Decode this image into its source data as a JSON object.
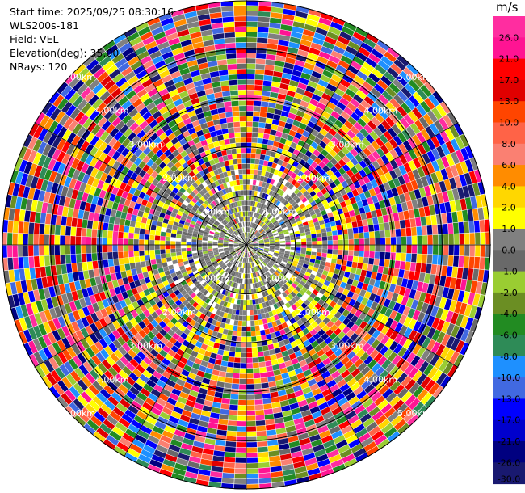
{
  "header": {
    "start_time": "Start time: 2025/09/25 08:30:16",
    "site": "WLS200s-181",
    "field": "Field: VEL",
    "elevation": "Elevation(deg): 35.00",
    "nrays": "NRays: 120"
  },
  "colorbar": {
    "unit": "m/s",
    "ticks": [
      "26.0",
      "21.0",
      "17.0",
      "13.0",
      "10.0",
      "8.0",
      "6.0",
      "4.0",
      "2.0",
      "1.0",
      "0.0",
      "-1.0",
      "-2.0",
      "-4.0",
      "-6.0",
      "-8.0",
      "-10.0",
      "-13.0",
      "-17.0",
      "-21.0",
      "-26.0",
      "-30.0"
    ],
    "colors": [
      "#ff2da0",
      "#ff1493",
      "#ff0000",
      "#e00000",
      "#ff4500",
      "#ff6347",
      "#fa8072",
      "#ff8c00",
      "#ffd700",
      "#ffff00",
      "#808080",
      "#696969",
      "#9acd32",
      "#6b8e23",
      "#228b22",
      "#2e8b57",
      "#1e90ff",
      "#4169e1",
      "#0000ff",
      "#0000cd",
      "#000080",
      "#191970"
    ]
  },
  "chart_data": {
    "type": "heatmap",
    "subtype": "radar-ppi",
    "field": "VEL",
    "units": "m/s",
    "n_rays": 120,
    "max_range_km": 5.0,
    "range_ring_labels": [
      "1.00km",
      "2.00km",
      "3.00km",
      "4.00km",
      "5.00km"
    ],
    "value_range": [
      -30.0,
      26.0
    ]
  }
}
